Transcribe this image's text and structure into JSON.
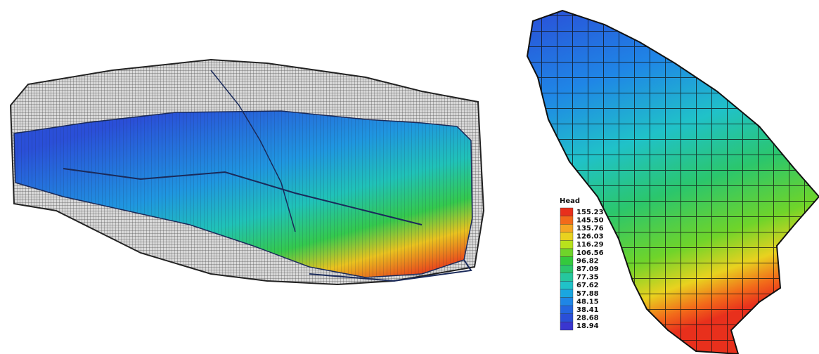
{
  "legend": {
    "title": "Head",
    "labels": [
      "155.23",
      "145.50",
      "135.76",
      "126.03",
      "116.29",
      "106.56",
      "96.82",
      "87.09",
      "77.35",
      "67.62",
      "57.88",
      "48.15",
      "38.41",
      "28.68",
      "18.94"
    ],
    "colors": [
      "#e8301c",
      "#f26a1a",
      "#f5a623",
      "#e9d21f",
      "#b8e21c",
      "#6fd42a",
      "#34c93d",
      "#2bc66c",
      "#25c79e",
      "#20c2c8",
      "#1aa6e0",
      "#1f86e6",
      "#2466e0",
      "#2a4fd8",
      "#3a36d0"
    ]
  }
}
